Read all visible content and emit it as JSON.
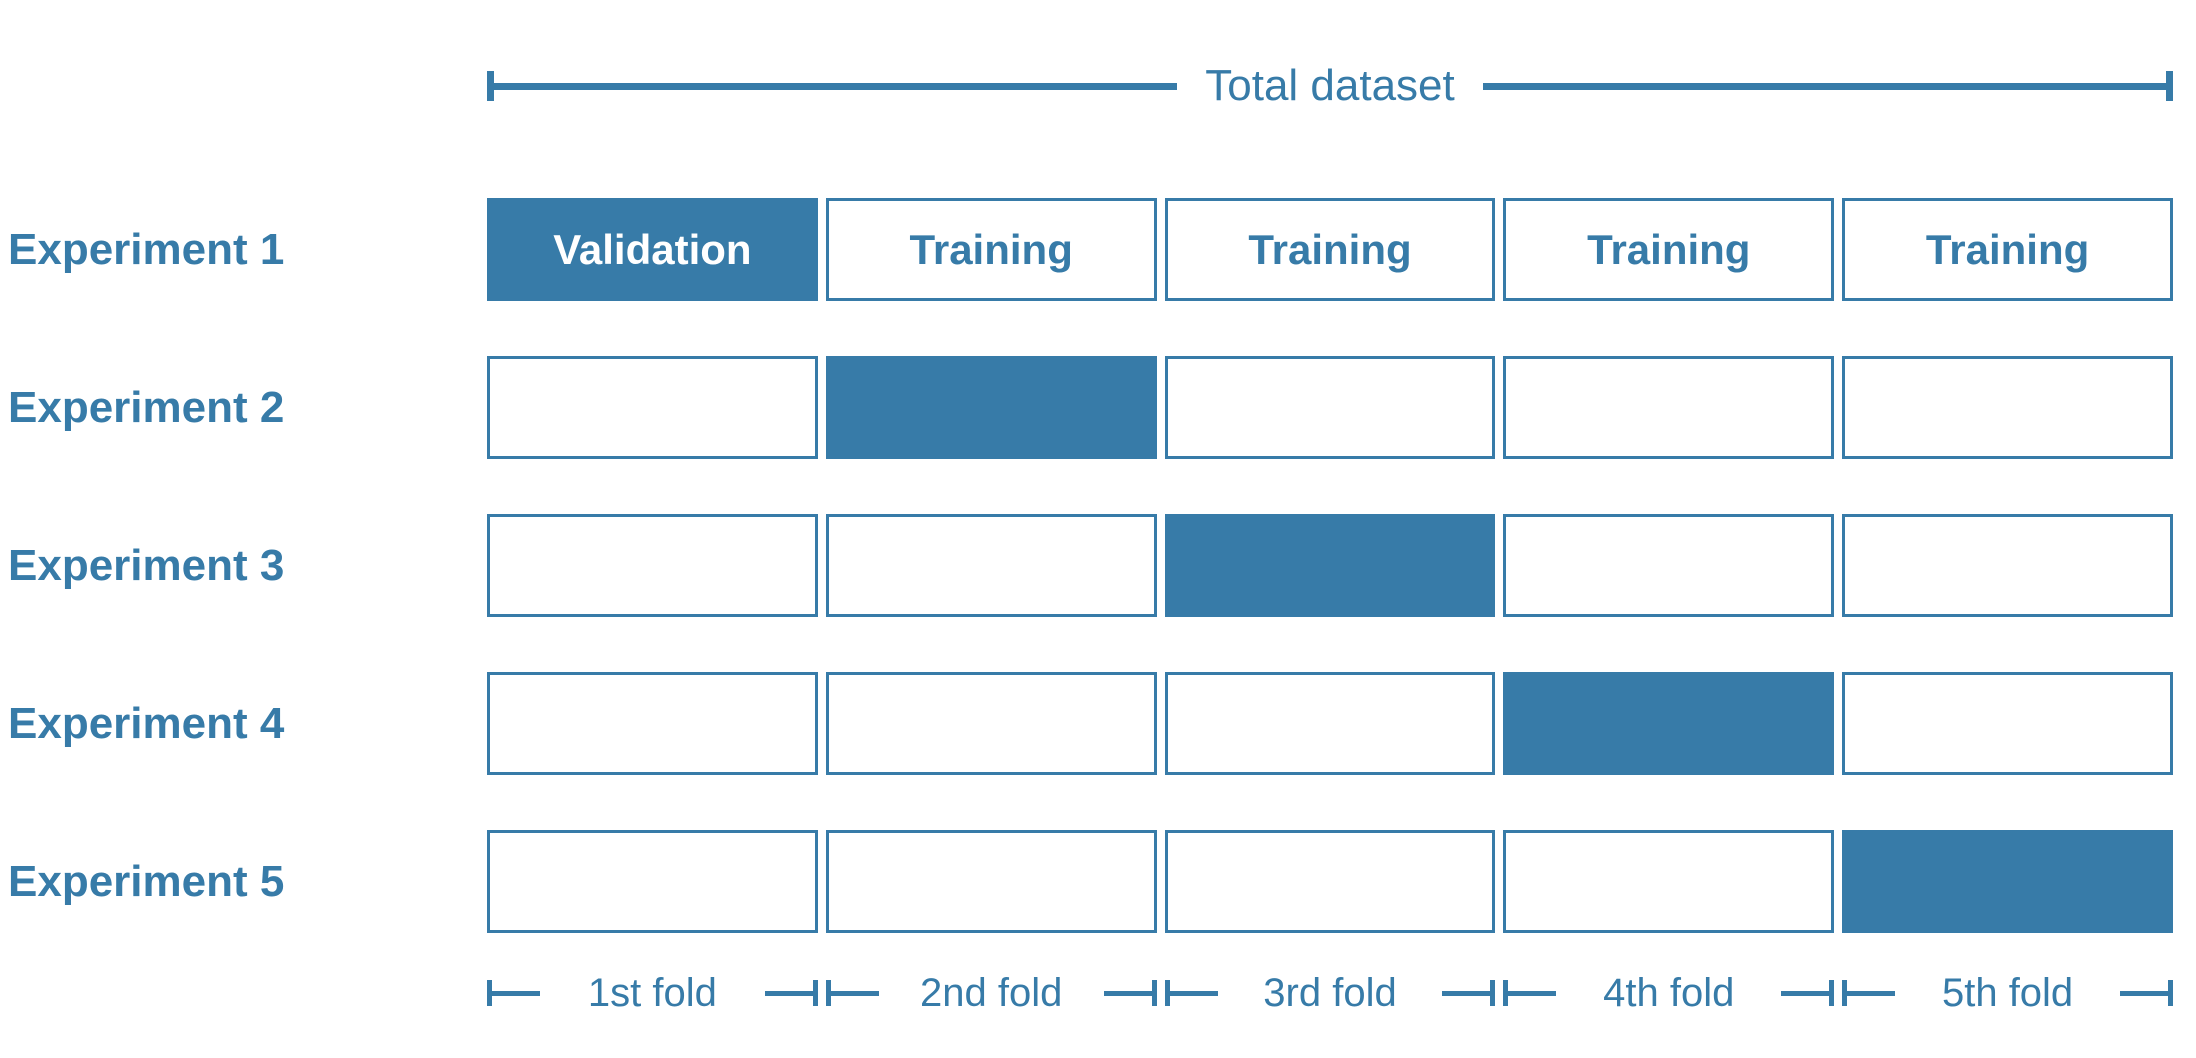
{
  "colors": {
    "accent": "#377BA8"
  },
  "header": {
    "total_label": "Total dataset"
  },
  "experiments": [
    {
      "label": "Experiment 1",
      "cells": [
        {
          "text": "Validation",
          "filled": true
        },
        {
          "text": "Training",
          "filled": false
        },
        {
          "text": "Training",
          "filled": false
        },
        {
          "text": "Training",
          "filled": false
        },
        {
          "text": "Training",
          "filled": false
        }
      ]
    },
    {
      "label": "Experiment 2",
      "cells": [
        {
          "text": "",
          "filled": false
        },
        {
          "text": "",
          "filled": true
        },
        {
          "text": "",
          "filled": false
        },
        {
          "text": "",
          "filled": false
        },
        {
          "text": "",
          "filled": false
        }
      ]
    },
    {
      "label": "Experiment 3",
      "cells": [
        {
          "text": "",
          "filled": false
        },
        {
          "text": "",
          "filled": false
        },
        {
          "text": "",
          "filled": true
        },
        {
          "text": "",
          "filled": false
        },
        {
          "text": "",
          "filled": false
        }
      ]
    },
    {
      "label": "Experiment 4",
      "cells": [
        {
          "text": "",
          "filled": false
        },
        {
          "text": "",
          "filled": false
        },
        {
          "text": "",
          "filled": false
        },
        {
          "text": "",
          "filled": true
        },
        {
          "text": "",
          "filled": false
        }
      ]
    },
    {
      "label": "Experiment 5",
      "cells": [
        {
          "text": "",
          "filled": false
        },
        {
          "text": "",
          "filled": false
        },
        {
          "text": "",
          "filled": false
        },
        {
          "text": "",
          "filled": false
        },
        {
          "text": "",
          "filled": true
        }
      ]
    }
  ],
  "folds": [
    {
      "label": "1st fold"
    },
    {
      "label": "2nd fold"
    },
    {
      "label": "3rd fold"
    },
    {
      "label": "4th fold"
    },
    {
      "label": "5th fold"
    }
  ]
}
